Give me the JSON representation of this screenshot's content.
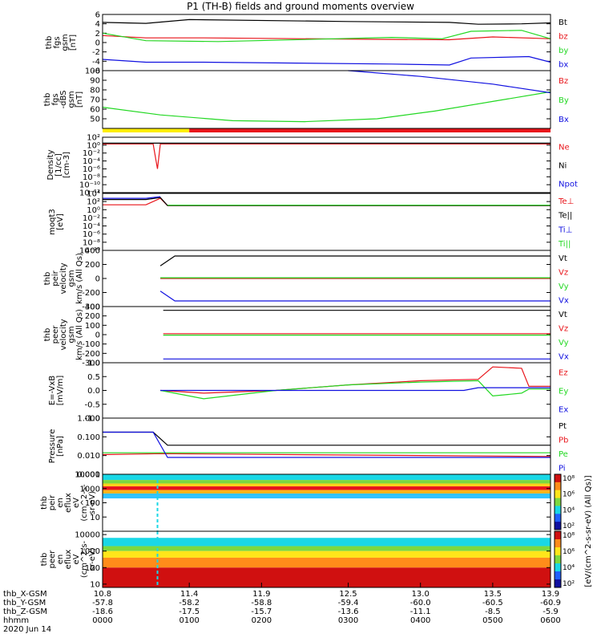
{
  "title": "P1 (TH-B) fields and ground moments overview",
  "colors": {
    "black": "#000000",
    "red": "#e8141a",
    "green": "#22d822",
    "blue": "#1010e0",
    "yellow": "#ffee00"
  },
  "chart_data": [
    {
      "type": "line",
      "ylabel": [
        "thb",
        "fgs",
        "gsm",
        "[nT]"
      ],
      "ylim": [
        -6,
        6
      ],
      "yticks": [
        "6",
        "4",
        "2",
        "0",
        "-2",
        "-4",
        "-6"
      ],
      "yticks_v": [
        6,
        4,
        2,
        0,
        -2,
        -4,
        -6
      ],
      "series": [
        {
          "name": "Bt",
          "color": "black",
          "x": [
            10.8,
            11.1,
            11.4,
            12.5,
            13.2,
            13.4,
            13.7,
            13.9
          ],
          "values": [
            4.3,
            4.1,
            4.9,
            4.5,
            4.3,
            3.9,
            4.0,
            4.2
          ]
        },
        {
          "name": "bz",
          "color": "red",
          "x": [
            10.8,
            11.1,
            11.5,
            12.6,
            13.2,
            13.5,
            13.8,
            13.9
          ],
          "values": [
            1.5,
            1.0,
            1.0,
            0.7,
            0.6,
            1.2,
            0.9,
            0.8
          ]
        },
        {
          "name": "by",
          "color": "green",
          "x": [
            10.8,
            11.1,
            11.6,
            12.8,
            13.15,
            13.35,
            13.7,
            13.9
          ],
          "values": [
            2.0,
            0.4,
            0.2,
            1.1,
            0.8,
            2.4,
            2.6,
            0.8
          ]
        },
        {
          "name": "bx",
          "color": "blue",
          "x": [
            10.8,
            11.1,
            11.5,
            12.8,
            13.2,
            13.35,
            13.75,
            13.9
          ],
          "values": [
            -3.6,
            -4.2,
            -4.2,
            -4.6,
            -4.8,
            -3.3,
            -3.0,
            -4.2
          ]
        }
      ]
    },
    {
      "type": "line",
      "ylabel": [
        "thb",
        "fgs",
        "-dBS",
        "gsm",
        "[nT]"
      ],
      "ylim": [
        40,
        100
      ],
      "yticks": [
        "100",
        "90",
        "80",
        "70",
        "60",
        "50"
      ],
      "yticks_v": [
        100,
        90,
        80,
        70,
        60,
        50
      ],
      "series": [
        {
          "name": "Bz",
          "color": "red",
          "x": [],
          "values": []
        },
        {
          "name": "By",
          "color": "green",
          "x": [
            10.8,
            11.2,
            11.7,
            12.2,
            12.7,
            13.1,
            13.5,
            13.9
          ],
          "values": [
            62,
            54,
            48,
            47,
            50,
            58,
            68,
            78
          ]
        },
        {
          "name": "Bx",
          "color": "blue",
          "x": [
            12.5,
            13.0,
            13.5,
            13.9
          ],
          "values": [
            100,
            94,
            86,
            77
          ]
        }
      ]
    },
    {
      "type": "line",
      "ylabel": [
        "Density",
        "[1/cc]",
        "[cm-3]"
      ],
      "ylim": [
        -12,
        2
      ],
      "log": true,
      "yticks": [
        "10²",
        "10⁰",
        "10⁻²",
        "10⁻⁴",
        "10⁻⁶",
        "10⁻⁸",
        "10⁻¹⁰",
        "10⁻¹²"
      ],
      "yticks_v": [
        2,
        0,
        -2,
        -4,
        -6,
        -8,
        -10,
        -12
      ],
      "series": [
        {
          "name": "Ne",
          "color": "red",
          "x": [
            10.8,
            11.15,
            11.18,
            11.2,
            11.25,
            13.9
          ],
          "values": [
            0.3,
            0.3,
            -6,
            0.3,
            0.3,
            0.3
          ]
        },
        {
          "name": "Ni",
          "color": "black",
          "x": [
            10.8,
            13.9
          ],
          "values": [
            0.5,
            0.5
          ]
        },
        {
          "name": "Npot",
          "color": "blue",
          "x": [],
          "values": []
        }
      ]
    },
    {
      "type": "line",
      "ylabel": [
        "moqt3",
        "[eV]"
      ],
      "ylim": [
        -10,
        4
      ],
      "log": true,
      "yticks": [
        "10⁴",
        "10²",
        "10⁰",
        "10⁻²",
        "10⁻⁴",
        "10⁻⁶",
        "10⁻⁸",
        "10⁻¹⁰"
      ],
      "yticks_v": [
        4,
        2,
        0,
        -2,
        -4,
        -6,
        -8,
        -10
      ],
      "series": [
        {
          "name": "Te⊥",
          "color": "red",
          "x": [
            10.8,
            11.1,
            11.2,
            11.25,
            13.9
          ],
          "values": [
            1.2,
            1.2,
            2.8,
            1.0,
            1.0
          ]
        },
        {
          "name": "Te||",
          "color": "black",
          "x": [
            10.8,
            11.1,
            11.2,
            11.25,
            13.9
          ],
          "values": [
            2.5,
            2.5,
            3.0,
            1.0,
            1.0
          ]
        },
        {
          "name": "Ti⊥",
          "color": "blue",
          "x": [
            10.8,
            11.1,
            11.2
          ],
          "values": [
            2.8,
            2.8,
            3.2
          ]
        },
        {
          "name": "Ti||",
          "color": "green",
          "x": [
            11.25,
            13.9
          ],
          "values": [
            1.1,
            1.1
          ]
        }
      ]
    },
    {
      "type": "line",
      "ylabel": [
        "thb",
        "peir",
        "velocity",
        "gsm",
        "km/s (All Qs)"
      ],
      "ylim": [
        -400,
        400
      ],
      "yticks": [
        "400",
        "200",
        "0",
        "-200",
        "-400"
      ],
      "yticks_v": [
        400,
        200,
        0,
        -200,
        -400
      ],
      "series": [
        {
          "name": "Vt",
          "color": "black",
          "x": [
            11.2,
            11.3,
            13.9
          ],
          "values": [
            180,
            320,
            320
          ]
        },
        {
          "name": "Vz",
          "color": "red",
          "x": [
            11.2,
            13.9
          ],
          "values": [
            0,
            0
          ]
        },
        {
          "name": "Vy",
          "color": "green",
          "x": [
            11.2,
            13.9
          ],
          "values": [
            10,
            10
          ]
        },
        {
          "name": "Vx",
          "color": "blue",
          "x": [
            11.2,
            11.3,
            13.9
          ],
          "values": [
            -180,
            -320,
            -320
          ]
        }
      ]
    },
    {
      "type": "line",
      "ylabel": [
        "thb",
        "peer",
        "velocity",
        "gsm",
        "km/s (All Qs)"
      ],
      "ylim": [
        -300,
        300
      ],
      "yticks": [
        "300",
        "200",
        "100",
        "0",
        "-100",
        "-200",
        "-300"
      ],
      "yticks_v": [
        300,
        200,
        100,
        0,
        -100,
        -200,
        -300
      ],
      "series": [
        {
          "name": "Vt",
          "color": "black",
          "x": [
            11.22,
            13.9
          ],
          "values": [
            260,
            260
          ]
        },
        {
          "name": "Vz",
          "color": "red",
          "x": [
            11.22,
            13.9
          ],
          "values": [
            10,
            10
          ]
        },
        {
          "name": "Vy",
          "color": "green",
          "x": [
            11.22,
            13.9
          ],
          "values": [
            -5,
            -5
          ]
        },
        {
          "name": "Vx",
          "color": "blue",
          "x": [
            11.22,
            13.9
          ],
          "values": [
            -260,
            -260
          ]
        }
      ]
    },
    {
      "type": "line",
      "ylabel": [
        "E=-VxB",
        "[mV/m]"
      ],
      "ylim": [
        -1,
        1
      ],
      "yticks": [
        "1.0",
        "0.5",
        "0.0",
        "-0.5",
        "-1.0"
      ],
      "yticks_v": [
        1,
        0.5,
        0,
        -0.5,
        -1
      ],
      "series": [
        {
          "name": "Ez",
          "color": "red",
          "x": [
            11.2,
            11.5,
            12.0,
            12.5,
            13.0,
            13.4,
            13.5,
            13.7,
            13.75,
            13.9
          ],
          "values": [
            0,
            -0.1,
            0.0,
            0.2,
            0.35,
            0.4,
            0.85,
            0.8,
            0.15,
            0.15
          ]
        },
        {
          "name": "Ey",
          "color": "green",
          "x": [
            11.2,
            11.5,
            12.0,
            12.5,
            13.0,
            13.4,
            13.5,
            13.7,
            13.75,
            13.9
          ],
          "values": [
            0,
            -0.3,
            0.0,
            0.2,
            0.3,
            0.35,
            -0.2,
            -0.1,
            0.05,
            0.05
          ]
        },
        {
          "name": "Ex",
          "color": "blue",
          "x": [
            11.2,
            13.3,
            13.4,
            13.9
          ],
          "values": [
            0,
            0,
            0.1,
            0.1
          ]
        }
      ]
    },
    {
      "type": "line",
      "ylabel": [
        "Pressure",
        "[nPa]"
      ],
      "ylim": [
        -3,
        0
      ],
      "log": true,
      "yticks": [
        "1.000",
        "0.100",
        "0.010",
        "0.001"
      ],
      "yticks_v": [
        0,
        -1,
        -2,
        -3
      ],
      "series": [
        {
          "name": "Pt",
          "color": "black",
          "x": [
            10.8,
            11.15,
            11.25,
            13.9
          ],
          "values": [
            -0.75,
            -0.75,
            -1.45,
            -1.45
          ]
        },
        {
          "name": "Pb",
          "color": "red",
          "x": [
            10.8,
            11.2,
            13.9
          ],
          "values": [
            -1.95,
            -1.9,
            -2.05
          ]
        },
        {
          "name": "Pe",
          "color": "green",
          "x": [
            10.8,
            11.2,
            13.9
          ],
          "values": [
            -1.85,
            -1.85,
            -1.85
          ]
        },
        {
          "name": "Pi",
          "color": "blue",
          "x": [
            10.8,
            11.15,
            11.25,
            13.9
          ],
          "values": [
            -0.75,
            -0.75,
            -2.1,
            -2.1
          ]
        }
      ]
    },
    {
      "type": "heatmap",
      "ylabel": [
        "thb",
        "peir",
        "en",
        "eflux",
        "eV",
        "(cm^2-s-",
        "sr-eV)"
      ],
      "ylim": [
        0,
        4
      ],
      "log": true,
      "yticks": [
        "10000",
        "1000",
        "100",
        "10"
      ],
      "yticks_v": [
        4,
        3,
        2,
        1
      ]
    },
    {
      "type": "heatmap",
      "ylabel": [
        "thb",
        "peer",
        "en",
        "eflux",
        "eV",
        "(cm^2-s-",
        "sr-eV)"
      ],
      "ylim": [
        0.8,
        4.2
      ],
      "log": true,
      "yticks": [
        "10000",
        "1000",
        "100",
        "10"
      ],
      "yticks_v": [
        4,
        3,
        2,
        1
      ]
    }
  ],
  "colorbar": {
    "label": "[eV/(cm^2-s-sr-eV) (All Qs)]",
    "ticks1": [
      "10⁸",
      "10⁶",
      "10⁴",
      "10²"
    ],
    "ticks2": [
      "10⁸",
      "10⁶",
      "10⁴",
      "10²"
    ]
  },
  "xaxis": {
    "xlim": [
      10.8,
      13.9
    ],
    "rows": [
      {
        "label": "thb_X-GSM",
        "values": [
          "10.8",
          "11.4",
          "11.9",
          "12.5",
          "13.0",
          "13.5",
          "13.9"
        ]
      },
      {
        "label": "thb_Y-GSM",
        "values": [
          "-57.8",
          "-58.2",
          "-58.8",
          "-59.4",
          "-60.0",
          "-60.5",
          "-60.9"
        ]
      },
      {
        "label": "thb_Z-GSM",
        "values": [
          "-18.6",
          "-17.5",
          "-15.7",
          "-13.6",
          "-11.1",
          "-8.5",
          "-5.9"
        ]
      },
      {
        "label": "hhmm",
        "values": [
          "0000",
          "0100",
          "0200",
          "0300",
          "0400",
          "0500",
          "0600"
        ]
      }
    ],
    "date": "2020 Jun 14"
  }
}
